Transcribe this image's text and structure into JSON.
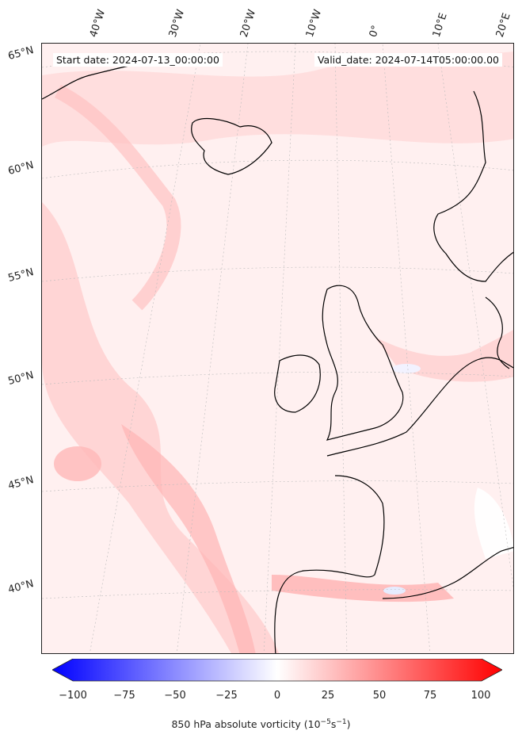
{
  "map": {
    "start_date": "Start date: 2024-07-13_00:00:00",
    "valid_date": "Valid_date: 2024-07-14T05:00:00.00",
    "longitude_labels": [
      "40°W",
      "30°W",
      "20°W",
      "10°W",
      "0°",
      "10°E",
      "20°E"
    ],
    "latitude_labels": [
      "65°N",
      "60°N",
      "55°N",
      "50°N",
      "45°N",
      "40°N"
    ],
    "field": "850 hPa absolute vorticity",
    "region": "North Atlantic / Western Europe"
  },
  "colorbar": {
    "ticks": [
      "−100",
      "−75",
      "−50",
      "−25",
      "0",
      "25",
      "50",
      "75",
      "100"
    ],
    "label_prefix": "850 hPa absolute vorticity (10",
    "label_exp1": "−5",
    "label_mid": "s",
    "label_exp2": "−1",
    "label_suffix": ")",
    "min": -100,
    "max": 100,
    "cmap": "bwr",
    "extend": "both",
    "colors": {
      "low": "#0000ff",
      "mid": "#ffffff",
      "high": "#ff0000"
    }
  }
}
